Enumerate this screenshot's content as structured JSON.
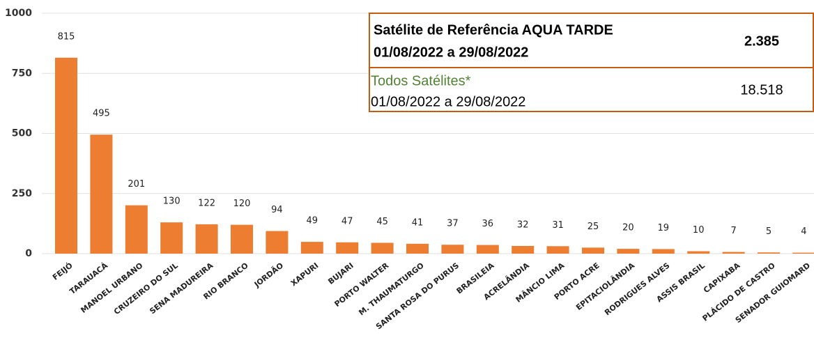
{
  "chart_data": {
    "type": "bar",
    "categories": [
      "FEIJÓ",
      "TARAUACÁ",
      "MANOEL URBANO",
      "CRUZEIRO DO SUL",
      "SENA MADUREIRA",
      "RIO BRANCO",
      "JORDÃO",
      "XAPURI",
      "BUJARI",
      "PORTO WALTER",
      "M. THAUMATURGO",
      "SANTA ROSA DO PURUS",
      "BRASILEIA",
      "ACRELÂNDIA",
      "MÂNCIO LIMA",
      "PORTO ACRE",
      "EPITACIOLÂNDIA",
      "RODRIGUES ALVES",
      "ASSIS BRASIL",
      "CAPIXABA",
      "PLÁCIDO DE CASTRO",
      "SENADOR GUIOMARD"
    ],
    "values": [
      815,
      495,
      201,
      130,
      122,
      120,
      94,
      49,
      47,
      45,
      41,
      37,
      36,
      32,
      31,
      25,
      20,
      19,
      10,
      7,
      5,
      4
    ],
    "color": "#ed7d31",
    "ylim": [
      0,
      1000
    ],
    "yticks": [
      0,
      250,
      500,
      750,
      1000
    ],
    "grid": true,
    "info_box": {
      "rows": [
        {
          "lines": [
            "Satélite de Referência AQUA TARDE",
            "01/08/2022 a 29/08/2022"
          ],
          "value": "2.385"
        },
        {
          "lines": [
            "Todos Satélites*",
            "01/08/2022 a 29/08/2022"
          ],
          "value": "18.518"
        }
      ]
    }
  }
}
